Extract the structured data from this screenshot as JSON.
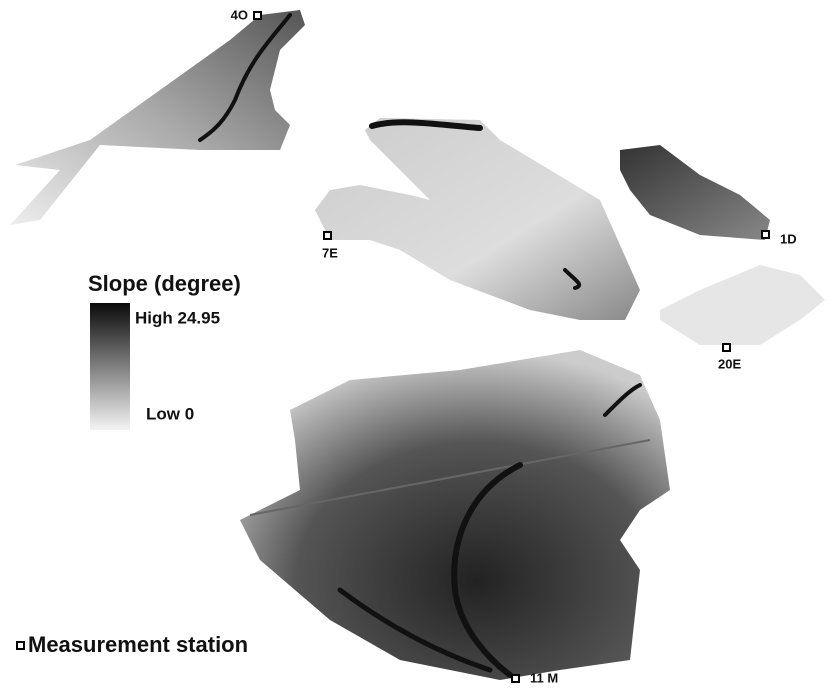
{
  "legend": {
    "title": "Slope (degree)",
    "high_label": "High 24.95",
    "low_label": "Low 0"
  },
  "stations": [
    {
      "label": "4O"
    },
    {
      "label": "7E"
    },
    {
      "label": "1D"
    },
    {
      "label": "20E"
    },
    {
      "label": "11 M"
    }
  ],
  "station_legend": "Measurement station"
}
